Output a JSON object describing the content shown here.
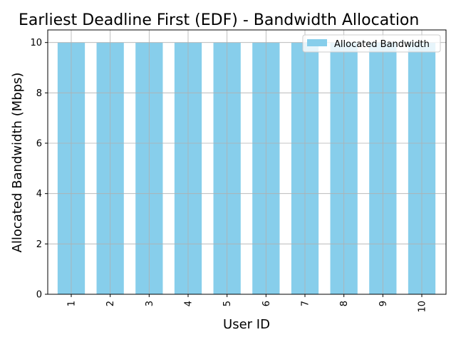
{
  "chart_data": {
    "type": "bar",
    "title": "Earliest Deadline First (EDF) - Bandwidth Allocation",
    "xlabel": "User ID",
    "ylabel": "Allocated Bandwidth (Mbps)",
    "categories": [
      "1",
      "2",
      "3",
      "4",
      "5",
      "6",
      "7",
      "8",
      "9",
      "10"
    ],
    "series": [
      {
        "name": "Allocated Bandwidth",
        "values": [
          10,
          10,
          10,
          10,
          10,
          10,
          10,
          10,
          10,
          10
        ]
      }
    ],
    "ylim": [
      0,
      10.5
    ],
    "yticks": [
      0,
      2,
      4,
      6,
      8,
      10
    ],
    "grid": true,
    "legend_position": "top-right",
    "colors": {
      "bar": "#87ceeb",
      "grid": "#b0b0b0",
      "axis": "#000000",
      "legend_border": "#cccccc"
    }
  }
}
